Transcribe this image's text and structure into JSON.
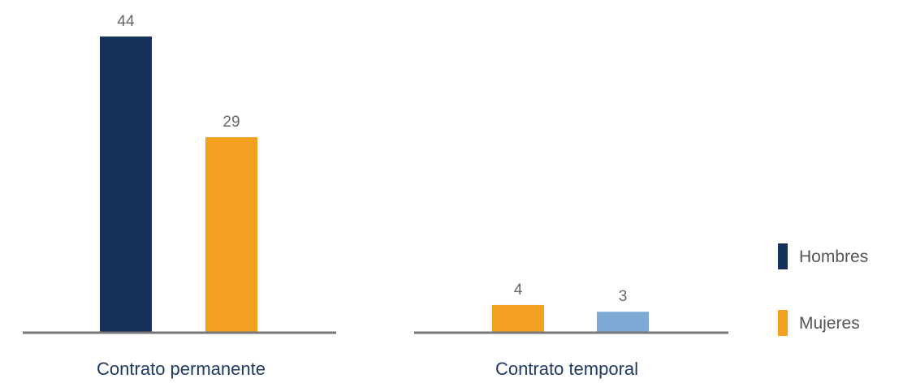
{
  "chart_data": [
    {
      "type": "bar",
      "categories": [
        "Contrato permanente"
      ],
      "bars": [
        {
          "series": "Hombres",
          "value": 44,
          "color": "#15325a"
        },
        {
          "series": "Mujeres",
          "value": 29,
          "color": "#f4a021"
        }
      ],
      "ylim": [
        0,
        44
      ]
    },
    {
      "type": "bar",
      "categories": [
        "Contrato temporal"
      ],
      "bars": [
        {
          "series": "Mujeres",
          "value": 4,
          "color": "#f4a021"
        },
        {
          "series": "",
          "value": 3,
          "color": "#7eaad6"
        }
      ],
      "ylim": [
        0,
        44
      ]
    }
  ],
  "legend": [
    {
      "label": "Hombres",
      "color": "#15325a"
    },
    {
      "label": "Mujeres",
      "color": "#f4a021"
    }
  ],
  "colors": {
    "axis": "#777777",
    "value_label": "#666666",
    "category_label": "#1f3b63"
  }
}
